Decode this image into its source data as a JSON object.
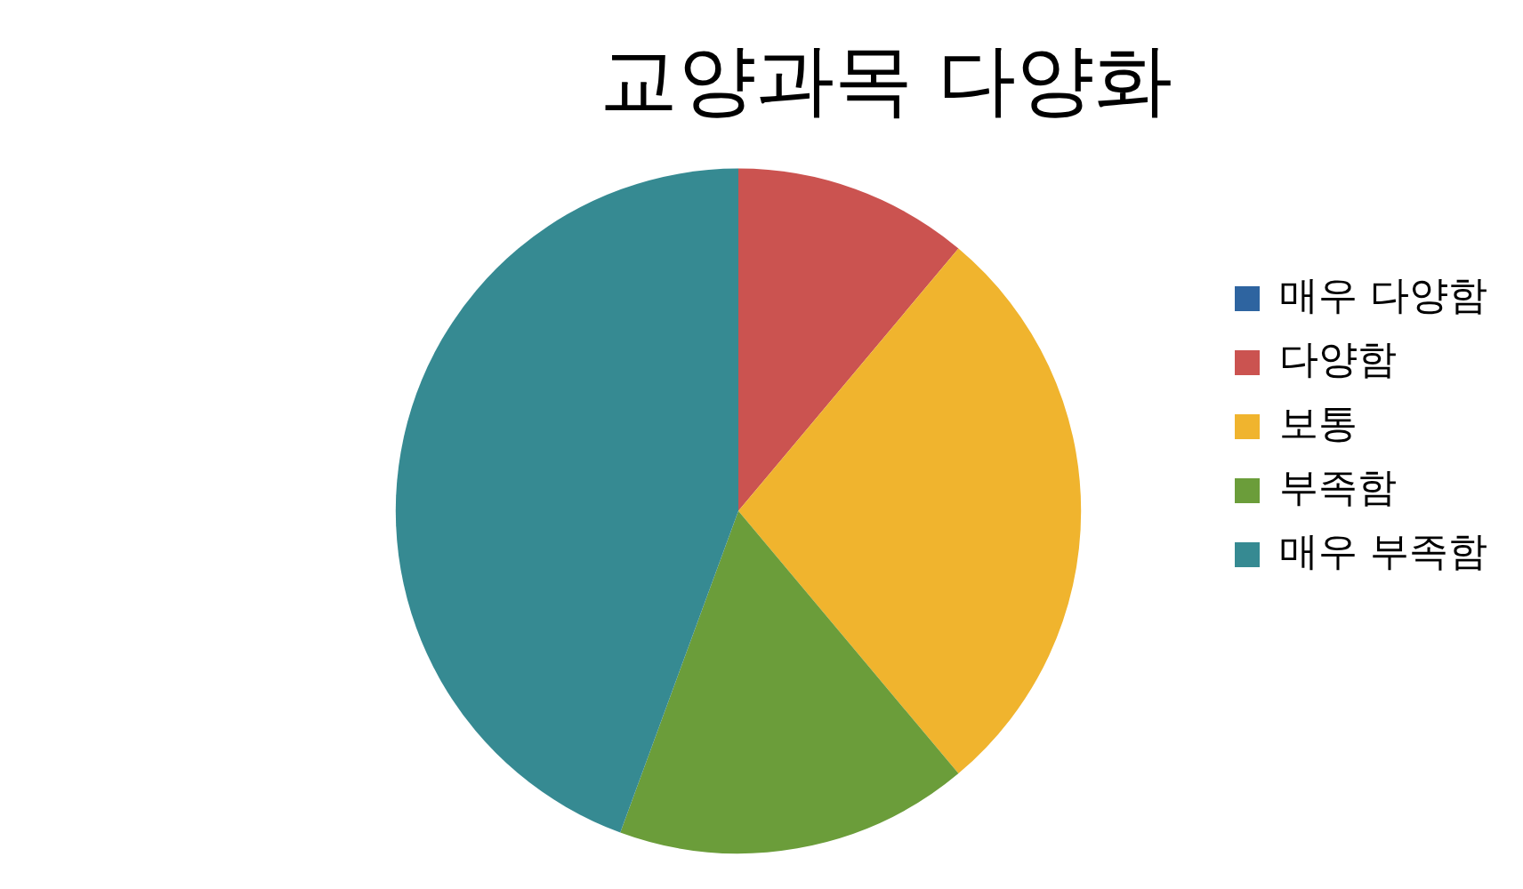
{
  "chart_data": {
    "type": "pie",
    "title": "교양과목 다양화",
    "categories": [
      "매우 다양함",
      "다양함",
      "보통",
      "부족함",
      "매우 부족함"
    ],
    "values": [
      0,
      11.1,
      27.8,
      16.7,
      44.4
    ],
    "colors": [
      "#2e64a0",
      "#cb5350",
      "#f0b42e",
      "#6b9d3a",
      "#368a92"
    ],
    "legend": "right"
  }
}
